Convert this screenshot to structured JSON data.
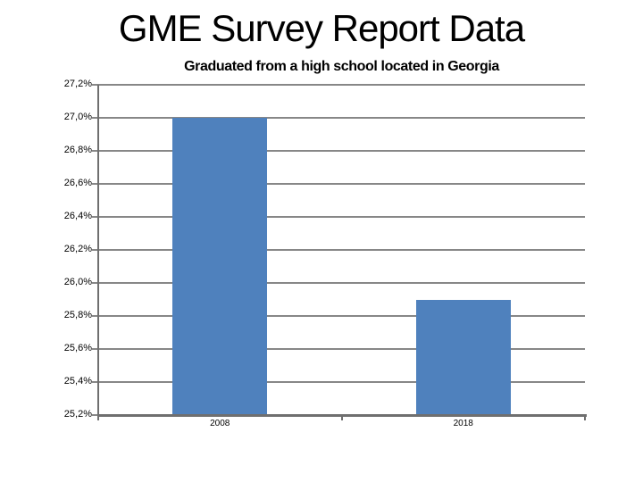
{
  "page_title": "GME Survey Report Data",
  "colors": {
    "bar": "#4f81bd",
    "gridline": "#878787",
    "axis": "#6f6f6f",
    "text": "#000000",
    "background": "#ffffff"
  },
  "chart_data": {
    "type": "bar",
    "title": "Graduated from a high school located in Georgia",
    "categories": [
      "2008",
      "2018"
    ],
    "values": [
      27.0,
      25.9
    ],
    "unit": "%",
    "decimal_separator": ",",
    "ylim": [
      25.2,
      27.2
    ],
    "ytick_step": 0.2,
    "ytick_labels": [
      "27,2%",
      "27,0%",
      "26,8%",
      "26,6%",
      "26,4%",
      "26,2%",
      "26,0%",
      "25,8%",
      "25,6%",
      "25,4%",
      "25,2%"
    ],
    "xlabel": "",
    "ylabel": "",
    "grid": "horizontal",
    "legend": "none"
  }
}
